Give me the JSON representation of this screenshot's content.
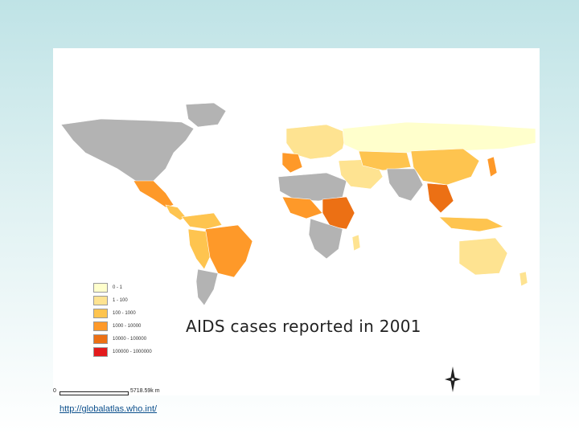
{
  "map": {
    "title": "AIDS cases reported in  2001",
    "legend": [
      {
        "label": "0 - 1",
        "color": "#ffffcc"
      },
      {
        "label": "1 - 100",
        "color": "#fee391"
      },
      {
        "label": "100 - 1000",
        "color": "#fec44f"
      },
      {
        "label": "1000 - 10000",
        "color": "#fe9929"
      },
      {
        "label": "10000 - 100000",
        "color": "#ec7014"
      },
      {
        "label": "100000 - 1000000",
        "color": "#e31a1c"
      }
    ],
    "no_data_color": "#b3b3b3",
    "scale": {
      "start": "0",
      "end": "5718.59k m"
    },
    "north_arrow_icon": "compass-rose"
  },
  "source_link": "http://globalatlas.who.int/"
}
